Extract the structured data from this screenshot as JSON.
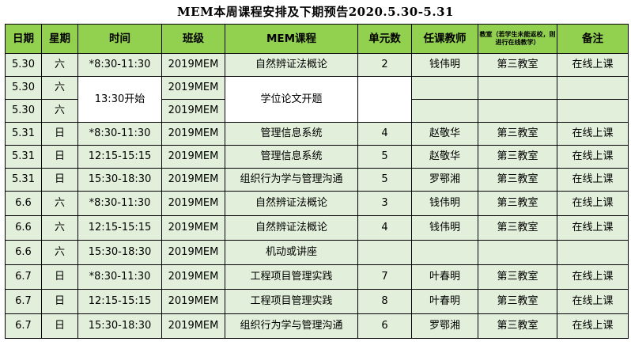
{
  "title": "MEM本周课程安排及下期预告2020.5.30-5.31",
  "headers": {
    "date": "日期",
    "weekday": "星期",
    "time": "时间",
    "class": "班级",
    "course": "MEM课程",
    "units": "单元数",
    "teacher": "任课教师",
    "classroom": "教室（若学生未能返校，则进行在线教学）",
    "note": "备注"
  },
  "rows": [
    {
      "date": "5.30",
      "weekday": "六",
      "time": "*8:30-11:30",
      "class": "2019MEM",
      "course": "自然辨证法概论",
      "units": "2",
      "teacher": "钱伟明",
      "classroom": "第三教室",
      "note": "在线上课"
    },
    {
      "date": "5.30",
      "weekday": "六",
      "time": "13:30开始",
      "class": "2019MEM",
      "course": "学位论文开题",
      "units": "",
      "teacher": "",
      "classroom": "",
      "note": ""
    },
    {
      "date": "5.30",
      "weekday": "六",
      "class": "2019MEM",
      "teacher": "",
      "classroom": "",
      "note": ""
    },
    {
      "date": "5.31",
      "weekday": "日",
      "time": "*8:30-11:30",
      "class": "2019MEM",
      "course": "管理信息系统",
      "units": "4",
      "teacher": "赵敬华",
      "classroom": "第三教室",
      "note": "在线上课"
    },
    {
      "date": "5.31",
      "weekday": "日",
      "time": "12:15-15:15",
      "class": "2019MEM",
      "course": "管理信息系统",
      "units": "5",
      "teacher": "赵敬华",
      "classroom": "第三教室",
      "note": "在线上课"
    },
    {
      "date": "5.31",
      "weekday": "日",
      "time": "15:30-18:30",
      "class": "2019MEM",
      "course": "组织行为学与管理沟通",
      "units": "5",
      "teacher": "罗鄂湘",
      "classroom": "第三教室",
      "note": "在线上课"
    },
    {
      "date": "6.6",
      "weekday": "六",
      "time": "*8:30-11:30",
      "class": "2019MEM",
      "course": "自然辨证法概论",
      "units": "3",
      "teacher": "钱伟明",
      "classroom": "第三教室",
      "note": "在线上课"
    },
    {
      "date": "6.6",
      "weekday": "六",
      "time": "12:15-15:15",
      "class": "2019MEM",
      "course": "自然辨证法概论",
      "units": "4",
      "teacher": "钱伟明",
      "classroom": "第三教室",
      "note": "在线上课"
    },
    {
      "date": "6.6",
      "weekday": "六",
      "time": "15:30-18:30",
      "class": "2019MEM",
      "course": "机动或讲座",
      "units": "",
      "teacher": "",
      "classroom": "",
      "note": ""
    },
    {
      "date": "6.7",
      "weekday": "日",
      "time": "*8:30-11:30",
      "class": "2019MEM",
      "course": "工程项目管理实践",
      "units": "7",
      "teacher": "叶春明",
      "classroom": "第三教室",
      "note": "在线上课"
    },
    {
      "date": "6.7",
      "weekday": "日",
      "time": "12:15-15:15",
      "class": "2019MEM",
      "course": "工程项目管理实践",
      "units": "8",
      "teacher": "叶春明",
      "classroom": "第三教室",
      "note": "在线上课"
    },
    {
      "date": "6.7",
      "weekday": "日",
      "time": "15:30-18:30",
      "class": "2019MEM",
      "course": "组织行为学与管理沟通",
      "units": "6",
      "teacher": "罗鄂湘",
      "classroom": "第三教室",
      "note": "在线上课"
    }
  ],
  "colors": {
    "header_bg": "#92d050",
    "row_bg": "#e2efda"
  }
}
